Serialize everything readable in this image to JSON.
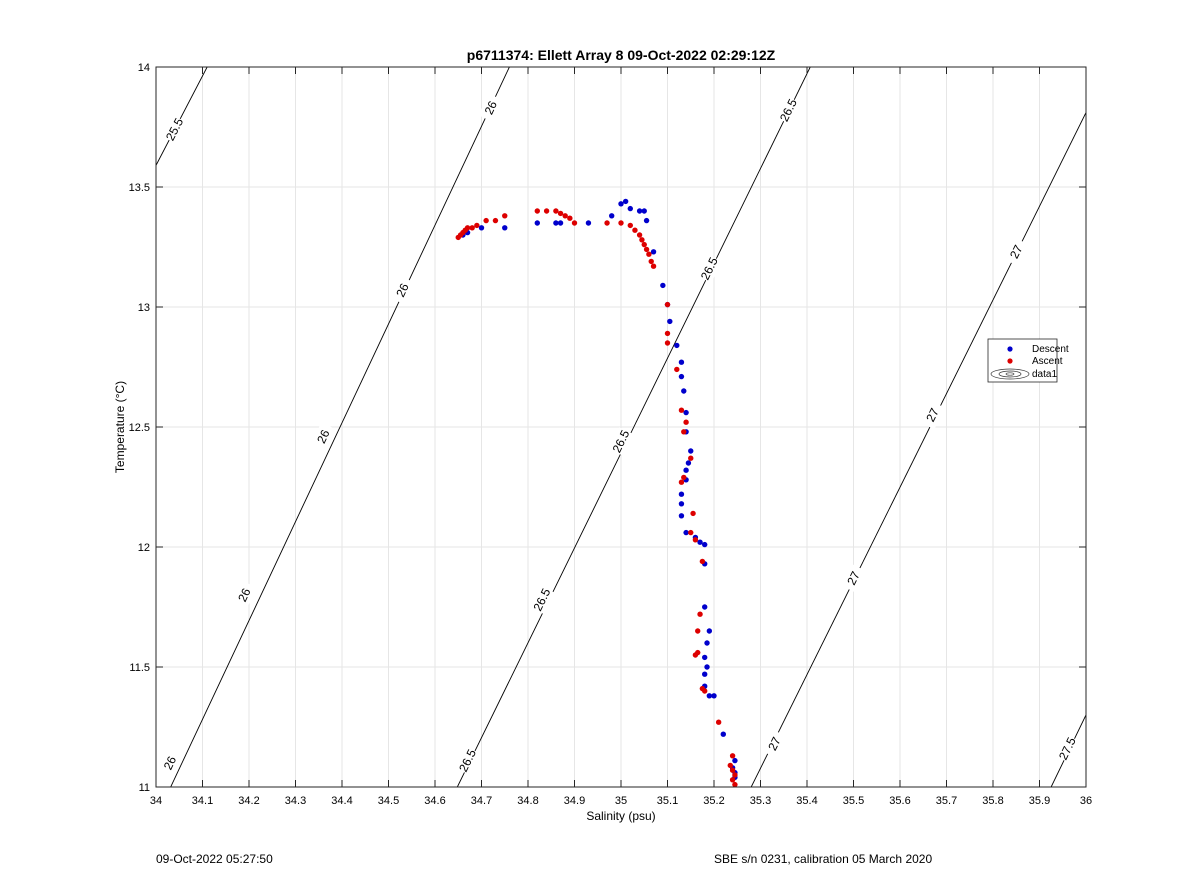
{
  "chart_data": {
    "type": "scatter",
    "title": "p6711374: Ellett Array 8 09-Oct-2022 02:29:12Z",
    "xlabel": "Salinity (psu)",
    "ylabel": "Temperature (°C)",
    "xlim": [
      34,
      36
    ],
    "ylim": [
      11,
      14
    ],
    "xticks": [
      34,
      34.1,
      34.2,
      34.3,
      34.4,
      34.5,
      34.6,
      34.7,
      34.8,
      34.9,
      35,
      35.1,
      35.2,
      35.3,
      35.4,
      35.5,
      35.6,
      35.7,
      35.8,
      35.9,
      36
    ],
    "xtick_labels": [
      "34",
      "34.1",
      "34.2",
      "34.3",
      "34.4",
      "34.5",
      "34.6",
      "34.7",
      "34.8",
      "34.9",
      "35",
      "35.1",
      "35.2",
      "35.3",
      "35.4",
      "35.5",
      "35.6",
      "35.7",
      "35.8",
      "35.9",
      "36"
    ],
    "yticks": [
      11,
      11.5,
      12,
      12.5,
      13,
      13.5,
      14
    ],
    "ytick_labels": [
      "11",
      "11.5",
      "12",
      "12.5",
      "13",
      "13.5",
      "14"
    ],
    "grid": true,
    "legend_position": "right",
    "contours": [
      {
        "level": "25.5",
        "line": [
          [
            34.0,
            13.59
          ],
          [
            34.11,
            14.0
          ]
        ],
        "labels": [
          {
            "text": "25.5",
            "at": [
              34.04,
              13.74
            ]
          }
        ]
      },
      {
        "level": "26",
        "line": [
          [
            34.0,
            10.87
          ],
          [
            34.76,
            14.0
          ]
        ],
        "labels": [
          {
            "text": "26",
            "at": [
              34.72,
              13.83
            ]
          },
          {
            "text": "26",
            "at": [
              34.53,
              13.07
            ]
          },
          {
            "text": "26",
            "at": [
              34.36,
              12.46
            ]
          },
          {
            "text": "26",
            "at": [
              34.19,
              11.8
            ]
          },
          {
            "text": "26",
            "at": [
              34.03,
              11.1
            ]
          }
        ]
      },
      {
        "level": "26.5",
        "line": [
          [
            34.648,
            11.0
          ],
          [
            35.407,
            14.0
          ]
        ],
        "labels": [
          {
            "text": "26.5",
            "at": [
              35.36,
              13.82
            ]
          },
          {
            "text": "26.5",
            "at": [
              35.19,
              13.16
            ]
          },
          {
            "text": "26.5",
            "at": [
              35.0,
              12.44
            ]
          },
          {
            "text": "26.5",
            "at": [
              34.83,
              11.78
            ]
          },
          {
            "text": "26.5",
            "at": [
              34.67,
              11.11
            ]
          }
        ]
      },
      {
        "level": "27",
        "line": [
          [
            35.28,
            11.0
          ],
          [
            36.0,
            13.81
          ]
        ],
        "labels": [
          {
            "text": "27",
            "at": [
              35.85,
              13.23
            ]
          },
          {
            "text": "27",
            "at": [
              35.67,
              12.55
            ]
          },
          {
            "text": "27",
            "at": [
              35.5,
              11.87
            ]
          },
          {
            "text": "27",
            "at": [
              35.33,
              11.18
            ]
          }
        ]
      },
      {
        "level": "27.5",
        "line": [
          [
            35.925,
            11.0
          ],
          [
            36.0,
            11.3
          ]
        ],
        "labels": [
          {
            "text": "27.5",
            "at": [
              35.96,
              11.16
            ]
          }
        ]
      }
    ],
    "series": [
      {
        "name": "Descent",
        "color": "#0000cc",
        "points": [
          [
            34.66,
            13.3
          ],
          [
            34.67,
            13.31
          ],
          [
            34.7,
            13.33
          ],
          [
            34.75,
            13.33
          ],
          [
            34.82,
            13.35
          ],
          [
            34.86,
            13.35
          ],
          [
            34.87,
            13.35
          ],
          [
            34.93,
            13.35
          ],
          [
            34.98,
            13.38
          ],
          [
            35.0,
            13.43
          ],
          [
            35.01,
            13.44
          ],
          [
            35.02,
            13.41
          ],
          [
            35.04,
            13.4
          ],
          [
            35.05,
            13.4
          ],
          [
            35.055,
            13.36
          ],
          [
            35.07,
            13.23
          ],
          [
            35.09,
            13.09
          ],
          [
            35.1,
            13.01
          ],
          [
            35.105,
            12.94
          ],
          [
            35.12,
            12.84
          ],
          [
            35.13,
            12.77
          ],
          [
            35.13,
            12.71
          ],
          [
            35.135,
            12.65
          ],
          [
            35.14,
            12.56
          ],
          [
            35.14,
            12.48
          ],
          [
            35.15,
            12.4
          ],
          [
            35.145,
            12.35
          ],
          [
            35.14,
            12.32
          ],
          [
            35.14,
            12.28
          ],
          [
            35.13,
            12.22
          ],
          [
            35.13,
            12.18
          ],
          [
            35.13,
            12.13
          ],
          [
            35.14,
            12.06
          ],
          [
            35.16,
            12.04
          ],
          [
            35.17,
            12.02
          ],
          [
            35.18,
            12.01
          ],
          [
            35.18,
            11.93
          ],
          [
            35.18,
            11.75
          ],
          [
            35.19,
            11.65
          ],
          [
            35.185,
            11.6
          ],
          [
            35.18,
            11.54
          ],
          [
            35.185,
            11.5
          ],
          [
            35.18,
            11.47
          ],
          [
            35.18,
            11.42
          ],
          [
            35.19,
            11.38
          ],
          [
            35.2,
            11.38
          ],
          [
            35.22,
            11.22
          ],
          [
            35.245,
            11.11
          ],
          [
            35.24,
            11.08
          ],
          [
            35.245,
            11.06
          ],
          [
            35.245,
            11.04
          ]
        ]
      },
      {
        "name": "Ascent",
        "color": "#dd0000",
        "points": [
          [
            34.65,
            13.29
          ],
          [
            34.655,
            13.3
          ],
          [
            34.66,
            13.31
          ],
          [
            34.665,
            13.32
          ],
          [
            34.67,
            13.33
          ],
          [
            34.68,
            13.33
          ],
          [
            34.69,
            13.34
          ],
          [
            34.71,
            13.36
          ],
          [
            34.73,
            13.36
          ],
          [
            34.75,
            13.38
          ],
          [
            34.82,
            13.4
          ],
          [
            34.84,
            13.4
          ],
          [
            34.86,
            13.4
          ],
          [
            34.87,
            13.39
          ],
          [
            34.88,
            13.38
          ],
          [
            34.89,
            13.37
          ],
          [
            34.9,
            13.35
          ],
          [
            34.97,
            13.35
          ],
          [
            35.0,
            13.35
          ],
          [
            35.02,
            13.34
          ],
          [
            35.03,
            13.32
          ],
          [
            35.04,
            13.3
          ],
          [
            35.045,
            13.28
          ],
          [
            35.05,
            13.26
          ],
          [
            35.055,
            13.24
          ],
          [
            35.06,
            13.22
          ],
          [
            35.065,
            13.19
          ],
          [
            35.07,
            13.17
          ],
          [
            35.1,
            13.01
          ],
          [
            35.1,
            12.89
          ],
          [
            35.1,
            12.85
          ],
          [
            35.12,
            12.74
          ],
          [
            35.13,
            12.57
          ],
          [
            35.14,
            12.52
          ],
          [
            35.135,
            12.48
          ],
          [
            35.15,
            12.37
          ],
          [
            35.135,
            12.29
          ],
          [
            35.13,
            12.27
          ],
          [
            35.155,
            12.14
          ],
          [
            35.15,
            12.06
          ],
          [
            35.16,
            12.03
          ],
          [
            35.175,
            11.94
          ],
          [
            35.17,
            11.72
          ],
          [
            35.165,
            11.65
          ],
          [
            35.165,
            11.56
          ],
          [
            35.16,
            11.55
          ],
          [
            35.175,
            11.41
          ],
          [
            35.18,
            11.4
          ],
          [
            35.21,
            11.27
          ],
          [
            35.24,
            11.13
          ],
          [
            35.235,
            11.09
          ],
          [
            35.24,
            11.07
          ],
          [
            35.245,
            11.05
          ],
          [
            35.24,
            11.03
          ],
          [
            35.245,
            11.01
          ]
        ]
      }
    ],
    "legend": {
      "entries": [
        "Descent",
        "Ascent",
        "data1"
      ]
    }
  },
  "footer": {
    "timestamp": "09-Oct-2022 05:27:50",
    "calibration": "SBE s/n 0231, calibration 05 March 2020"
  }
}
